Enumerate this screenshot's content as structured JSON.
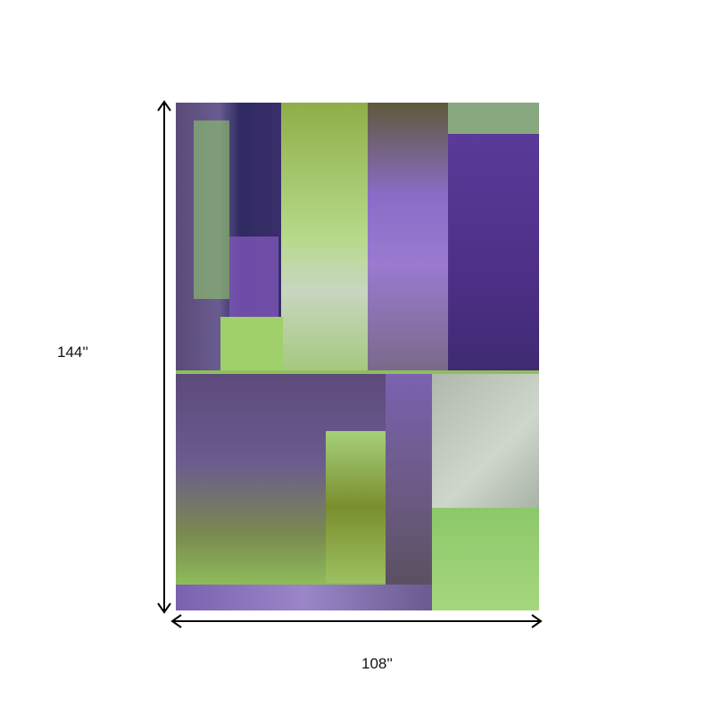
{
  "product": {
    "height_label": "144''",
    "width_label": "108''"
  },
  "colors": {
    "purple": "#4e2f86",
    "lime": "#9fce6a",
    "olive": "#6f7f2a",
    "gray": "#b5bfb4",
    "navy": "#2e2a5e"
  }
}
